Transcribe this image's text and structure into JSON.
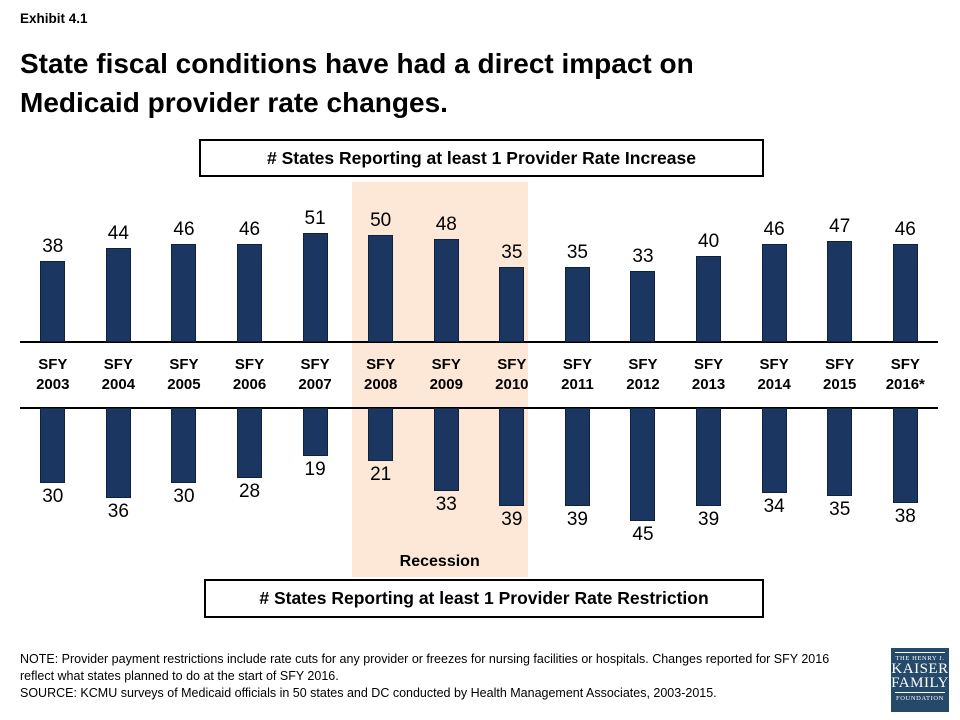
{
  "page": {
    "exhibit_label": "Exhibit 4.1",
    "title_line1": "State fiscal conditions have had a direct impact on",
    "title_line2": "Medicaid provider rate changes.",
    "note": "NOTE: Provider payment restrictions include rate cuts for any provider or freezes for nursing facilities or hospitals. Changes reported for SFY 2016 reflect what states planned to do at the start of SFY 2016.",
    "source": "SOURCE: KCMU surveys of Medicaid officials in 50 states and DC conducted by Health Management Associates, 2003-2015."
  },
  "chart_data": {
    "type": "bar",
    "subtype": "diverging-vertical-columns",
    "category_prefix": "SFY",
    "categories": [
      "2003",
      "2004",
      "2005",
      "2006",
      "2007",
      "2008",
      "2009",
      "2010",
      "2011",
      "2012",
      "2013",
      "2014",
      "2015",
      "2016*"
    ],
    "series": [
      {
        "name": "# States Reporting at least 1 Provider Rate Increase",
        "direction": "up",
        "values": [
          38,
          44,
          46,
          46,
          51,
          50,
          48,
          35,
          35,
          33,
          40,
          46,
          47,
          46
        ]
      },
      {
        "name": "# States Reporting at least 1 Provider Rate Restriction",
        "direction": "down",
        "values": [
          30,
          36,
          30,
          28,
          19,
          21,
          33,
          39,
          39,
          45,
          39,
          34,
          35,
          38
        ]
      }
    ],
    "recession": {
      "label": "Recession",
      "start_category": "2008",
      "end_category": "2010"
    },
    "colors": {
      "bar": "#1B3660",
      "recession_band": "#FDE7D6"
    },
    "grid": false,
    "legend_position": "boxed series labels above and below chart"
  },
  "logo": {
    "line1": "THE HENRY J.",
    "line2": "KAISER",
    "line3": "FAMILY",
    "line4": "FOUNDATION",
    "bg_color": "#25496B"
  }
}
